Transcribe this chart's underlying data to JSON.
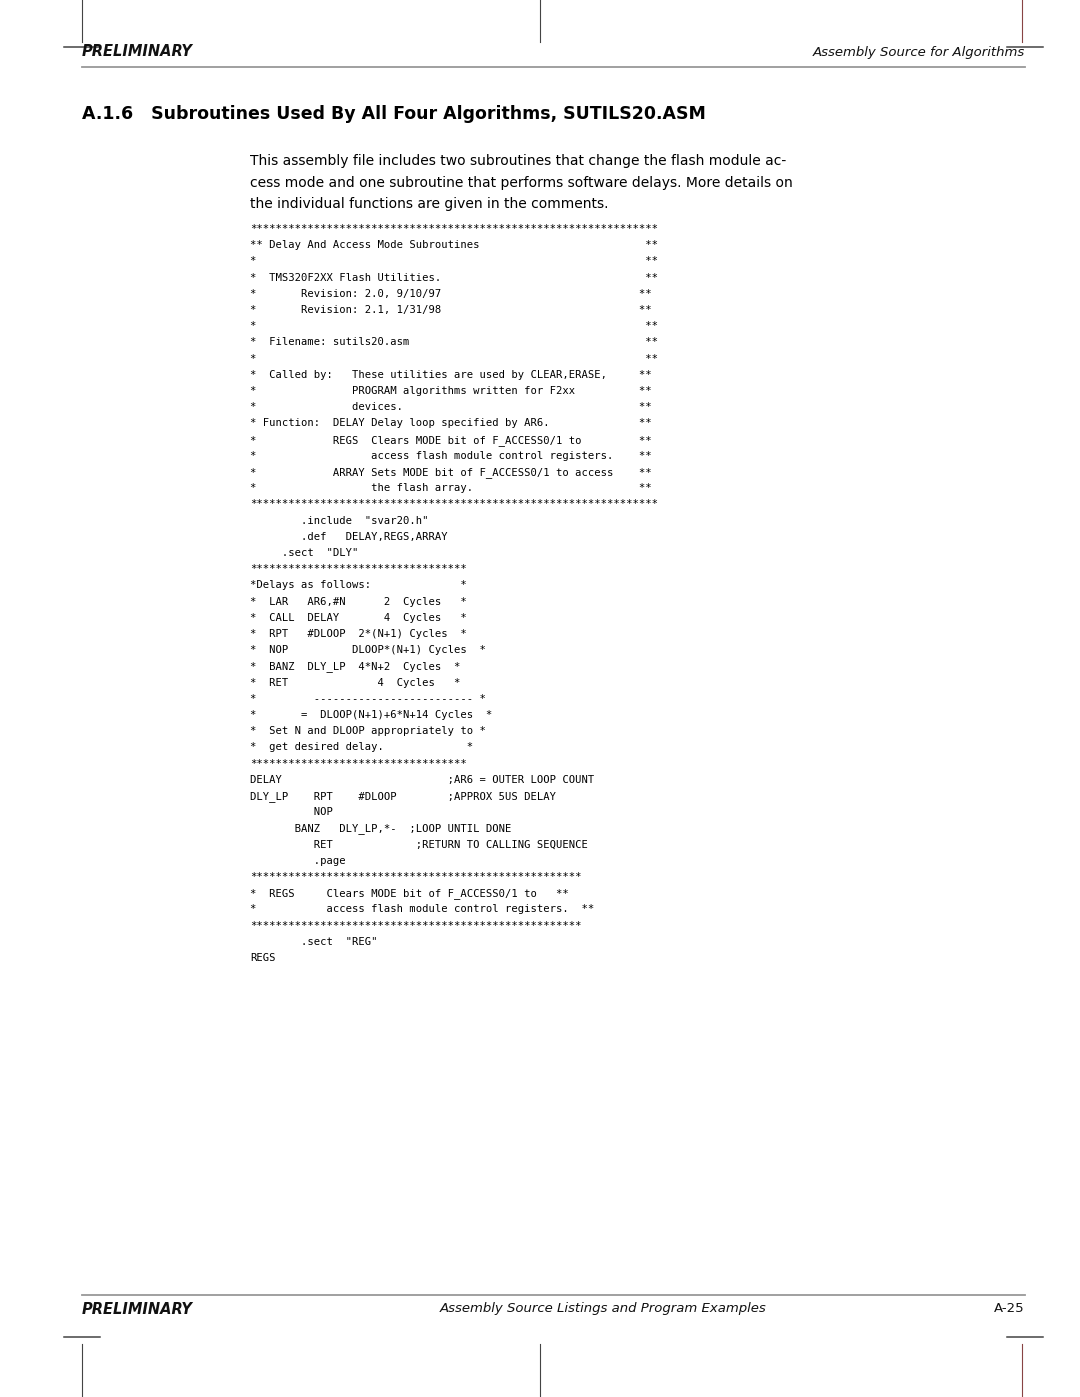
{
  "page_width": 10.8,
  "page_height": 13.97,
  "bg_color": "#ffffff",
  "header_left": "PRELIMINARY",
  "header_right": "Assembly Source for Algorithms",
  "footer_left": "PRELIMINARY",
  "footer_center": "Assembly Source Listings and Program Examples",
  "footer_right": "A-25",
  "section_title": "A.1.6   Subroutines Used By All Four Algorithms, SUTILS20.ASM",
  "intro_line1": "This assembly file includes two subroutines that change the flash module ac-",
  "intro_line2": "cess mode and one subroutine that performs software delays. More details on",
  "intro_line3": "the individual functions are given in the comments.",
  "code_lines": [
    "****************************************************************",
    "** Delay And Access Mode Subroutines                          **",
    "*                                                             **",
    "*  TMS320F2XX Flash Utilities.                                **",
    "*       Revision: 2.0, 9/10/97                               **",
    "*       Revision: 2.1, 1/31/98                               **",
    "*                                                             **",
    "*  Filename: sutils20.asm                                     **",
    "*                                                             **",
    "*  Called by:   These utilities are used by CLEAR,ERASE,     **",
    "*               PROGRAM algorithms written for F2xx          **",
    "*               devices.                                     **",
    "* Function:  DELAY Delay loop specified by AR6.              **",
    "*            REGS  Clears MODE bit of F_ACCESS0/1 to         **",
    "*                  access flash module control registers.    **",
    "*            ARRAY Sets MODE bit of F_ACCESS0/1 to access    **",
    "*                  the flash array.                          **",
    "****************************************************************",
    "        .include  \"svar20.h\"",
    "        .def   DELAY,REGS,ARRAY",
    "     .sect  \"DLY\"",
    "**********************************",
    "*Delays as follows:              *",
    "*  LAR   AR6,#N      2  Cycles   *",
    "*  CALL  DELAY       4  Cycles   *",
    "*  RPT   #DLOOP  2*(N+1) Cycles  *",
    "*  NOP          DLOOP*(N+1) Cycles  *",
    "*  BANZ  DLY_LP  4*N+2  Cycles  *",
    "*  RET              4  Cycles   *",
    "*         ------------------------- *",
    "*       =  DLOOP(N+1)+6*N+14 Cycles  *",
    "*  Set N and DLOOP appropriately to *",
    "*  get desired delay.             *",
    "**********************************",
    "DELAY                          ;AR6 = OUTER LOOP COUNT",
    "DLY_LP    RPT    #DLOOP        ;APPROX 5US DELAY",
    "          NOP",
    "       BANZ   DLY_LP,*-  ;LOOP UNTIL DONE",
    "          RET             ;RETURN TO CALLING SEQUENCE",
    "          .page",
    "****************************************************",
    "*  REGS     Clears MODE bit of F_ACCESS0/1 to   **",
    "*           access flash module control registers.  **",
    "****************************************************",
    "        .sect  \"REG\"",
    "REGS"
  ]
}
